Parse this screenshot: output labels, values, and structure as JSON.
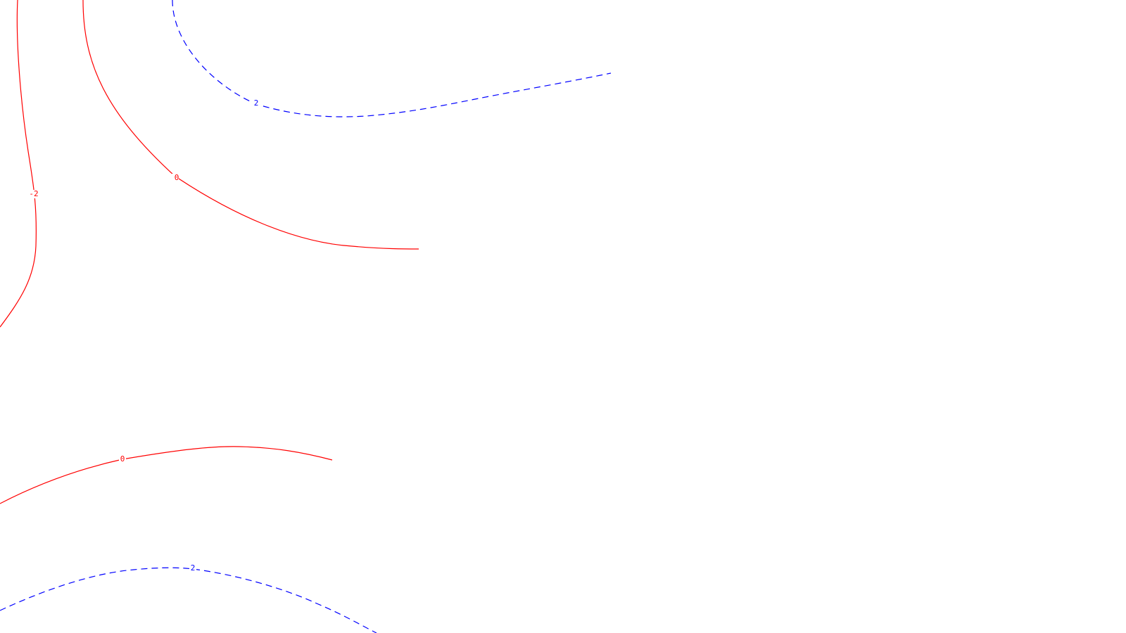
{
  "colors": {
    "background": "#ffffff",
    "negative_or_zero": "#ff0000",
    "positive": "#0000ff"
  },
  "contours": [
    {
      "id": "contour-minus2",
      "label": "-2",
      "color": "#ff0000",
      "style": "solid"
    },
    {
      "id": "contour-zero-top",
      "label": "0",
      "color": "#ff0000",
      "style": "solid"
    },
    {
      "id": "contour-zero-bottom",
      "label": "0",
      "color": "#ff0000",
      "style": "solid"
    },
    {
      "id": "contour-two-top",
      "label": "2",
      "color": "#0000ff",
      "style": "dashed"
    },
    {
      "id": "contour-two-bottom",
      "label": "2",
      "color": "#0000ff",
      "style": "dashed"
    }
  ]
}
